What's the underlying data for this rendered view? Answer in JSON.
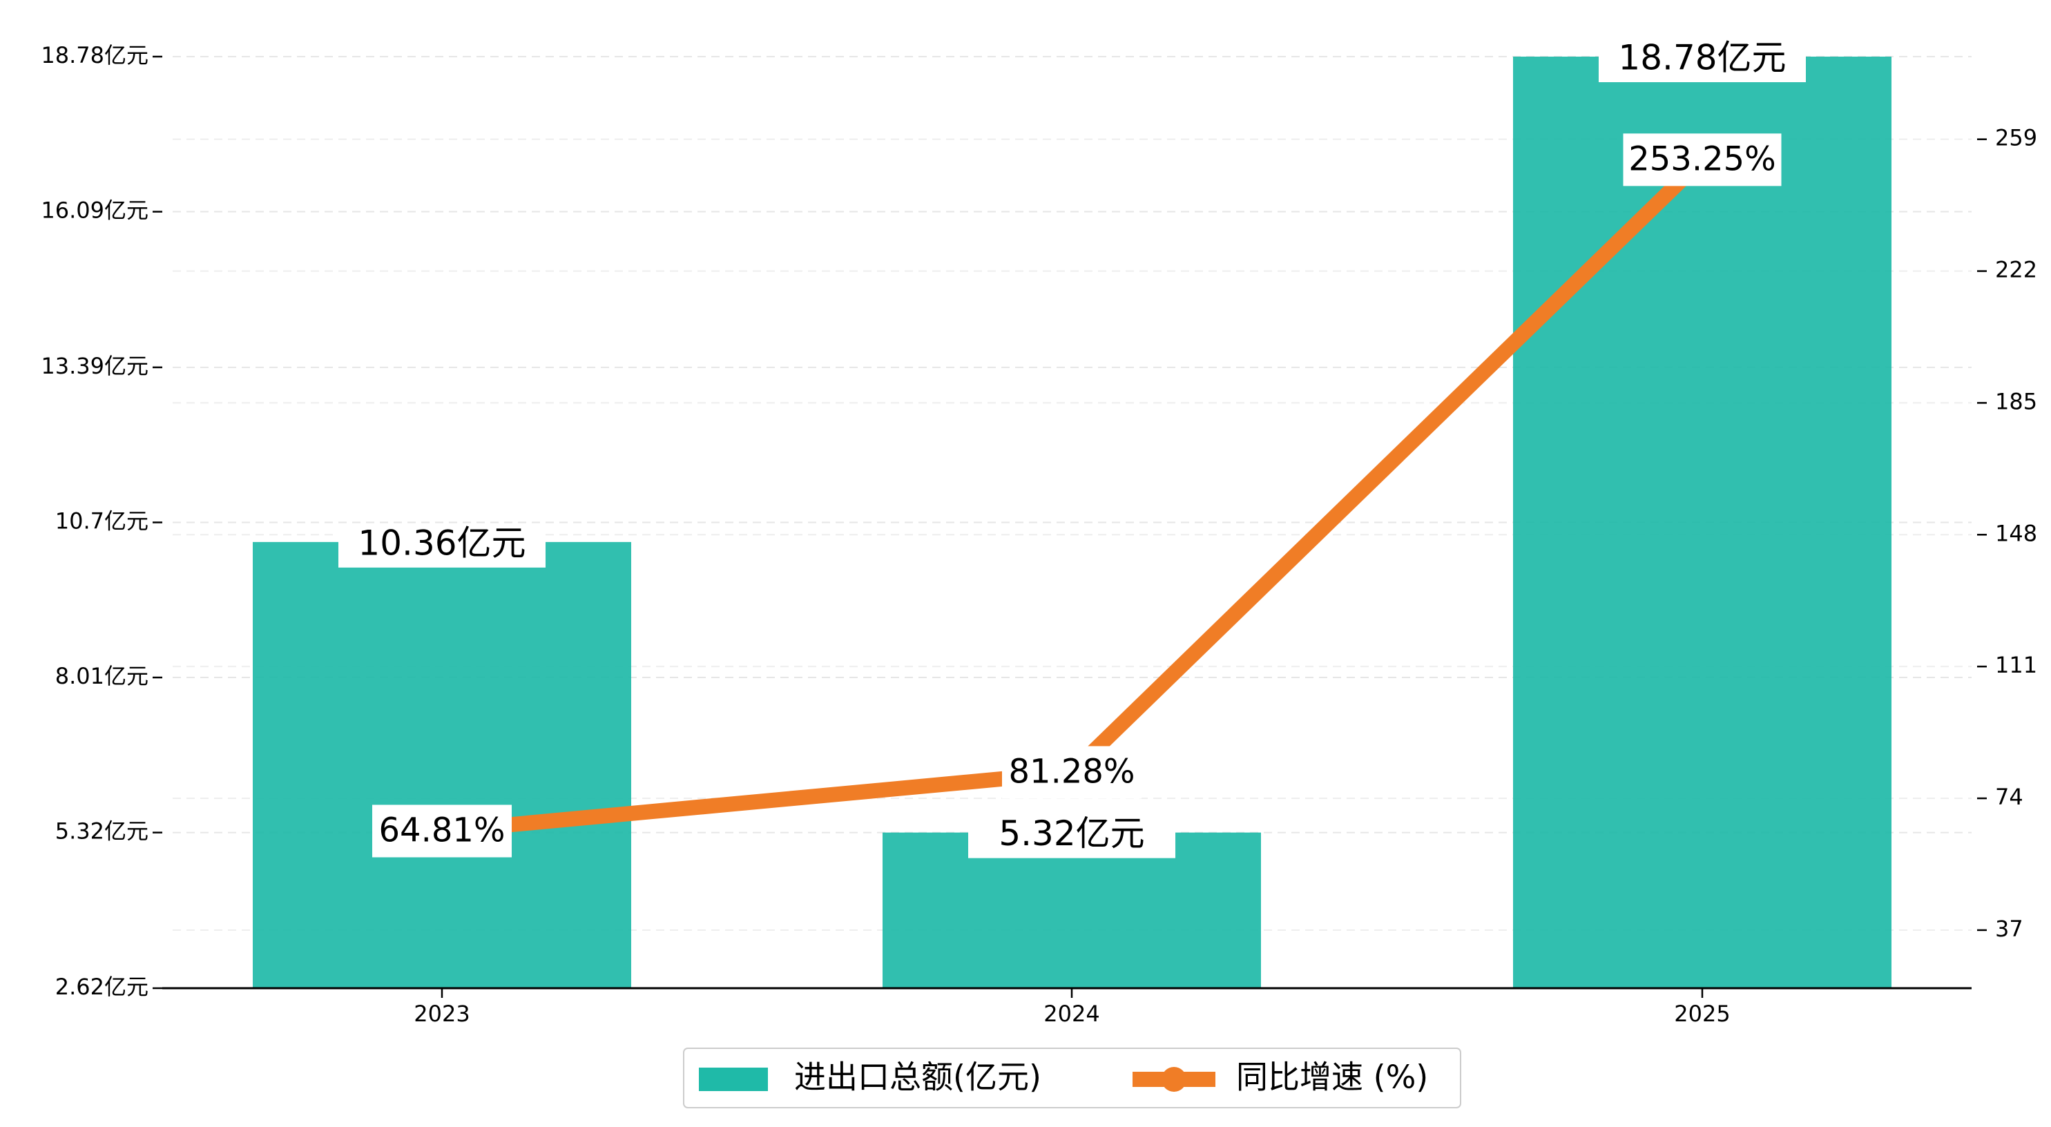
{
  "chart_data": {
    "type": "bar",
    "categories": [
      "2023",
      "2024",
      "2025"
    ],
    "series": [
      {
        "name": "进出口总额(亿元)",
        "type": "bar",
        "axis": "left",
        "values": [
          10.36,
          5.32,
          18.78
        ],
        "labels": [
          "10.36亿元",
          "5.32亿元",
          "18.78亿元"
        ]
      },
      {
        "name": "同比增速 (%)",
        "type": "line",
        "axis": "right",
        "values": [
          64.81,
          81.28,
          253.25
        ],
        "labels": [
          "64.81%",
          "81.28%",
          "253.25%"
        ]
      }
    ],
    "left_axis": {
      "ticks": [
        2.62,
        5.32,
        8.01,
        10.7,
        13.39,
        16.09,
        18.78
      ],
      "tick_labels": [
        "2.62亿元",
        "5.32亿元",
        "8.01亿元",
        "10.7亿元",
        "13.39亿元",
        "16.09亿元",
        "18.78亿元"
      ],
      "ylim": [
        2.62,
        18.78
      ]
    },
    "right_axis": {
      "ticks": [
        37,
        74,
        111,
        148,
        185,
        222,
        259
      ],
      "tick_labels": [
        "37",
        "74",
        "111",
        "148",
        "185",
        "222",
        "259"
      ],
      "ylim": [
        20.7,
        282.2
      ]
    },
    "grid": true,
    "legend": "bottom-center",
    "colors": {
      "bar": "#1fbaa8",
      "line": "#f07d26"
    }
  }
}
